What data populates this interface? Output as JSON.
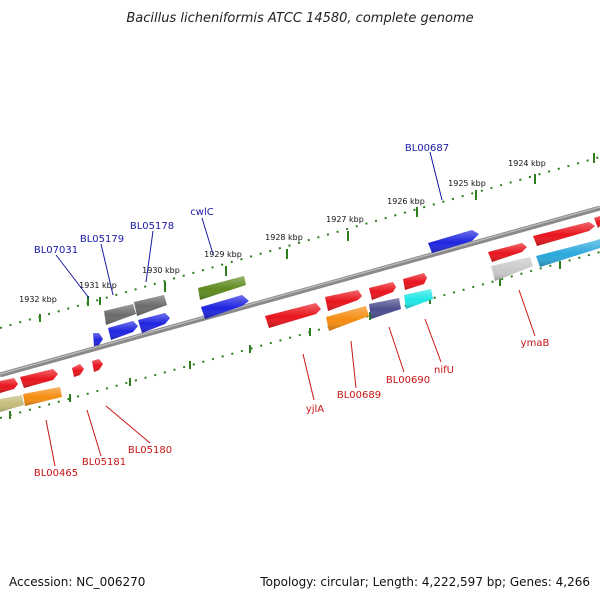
{
  "title": "Bacillus licheniformis ATCC 14580, complete genome",
  "footer": {
    "accession": "Accession: NC_006270",
    "topology": "Topology: circular; Length: 4,222,597 bp; Genes: 4,266"
  },
  "colors": {
    "backbone": "#7a7a7a",
    "ticks": "#2e7d1f",
    "upper_label": "#1a1aa8",
    "lower_label": "#c81414",
    "red": "#e8141c",
    "blue": "#1f24e0",
    "gray": "#6a6a6a",
    "olive": "#5f8a1e",
    "orange": "#f58c10",
    "purple": "#4b4d8e",
    "cyan": "#1fe6e6",
    "lightgray": "#c9c9c9",
    "tan": "#c4bc7a",
    "skyblue": "#2aa8dc"
  },
  "scale_ticks": [
    {
      "label": "1924 kbp"
    },
    {
      "label": "1925 kbp"
    },
    {
      "label": "1926 kbp"
    },
    {
      "label": "1927 kbp"
    },
    {
      "label": "1928 kbp"
    },
    {
      "label": "1929 kbp"
    },
    {
      "label": "1930 kbp"
    },
    {
      "label": "1931 kbp"
    },
    {
      "label": "1932 kbp"
    }
  ],
  "upper_labels": [
    {
      "text": "BL00687"
    },
    {
      "text": "cwlC"
    },
    {
      "text": "BL05178"
    },
    {
      "text": "BL05179"
    },
    {
      "text": "BL07031"
    }
  ],
  "lower_labels": [
    {
      "text": "ymaB"
    },
    {
      "text": "nifU"
    },
    {
      "text": "BL00690"
    },
    {
      "text": "BL00689"
    },
    {
      "text": "yjlA"
    },
    {
      "text": "BL05180"
    },
    {
      "text": "BL05181"
    },
    {
      "text": "BL00465"
    }
  ]
}
